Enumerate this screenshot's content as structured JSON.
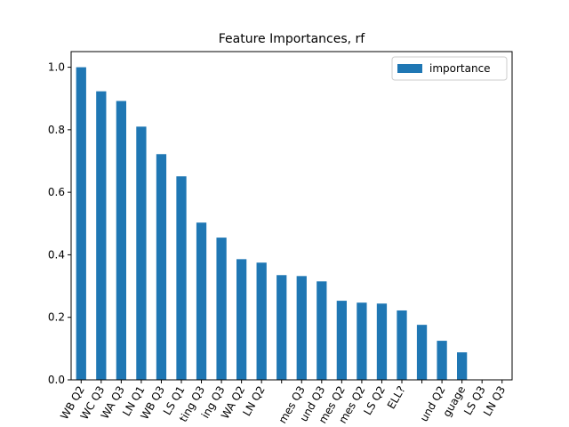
{
  "chart_data": {
    "type": "bar",
    "title": "Feature Importances, rf",
    "categories": [
      "WB Q2",
      "WC Q3",
      "WA Q3",
      "LN Q1",
      "WB Q3",
      "LS Q1",
      "ting Q3",
      "ing Q3",
      "WA Q2",
      "LN Q2",
      null,
      "mes Q3",
      "und Q3",
      "mes Q2",
      "mes Q2",
      "LS Q2",
      "ELL?",
      null,
      "und Q2",
      "guage",
      "LS Q3",
      "LN Q3"
    ],
    "series": [
      {
        "name": "importance",
        "color": "#1f77b4",
        "values": [
          1.0,
          0.923,
          0.892,
          0.81,
          0.722,
          0.651,
          0.503,
          0.455,
          0.386,
          0.375,
          0.335,
          0.332,
          0.315,
          0.253,
          0.247,
          0.244,
          0.222,
          0.176,
          0.125,
          0.088,
          0,
          0
        ]
      }
    ],
    "ylim": [
      0,
      1.05
    ],
    "yticks": [
      {
        "value": 0,
        "label": "0.0"
      },
      0.2,
      0.4,
      0.6,
      0.8,
      {
        "value": 1,
        "label": "1.0"
      }
    ],
    "legend": "upper right"
  }
}
